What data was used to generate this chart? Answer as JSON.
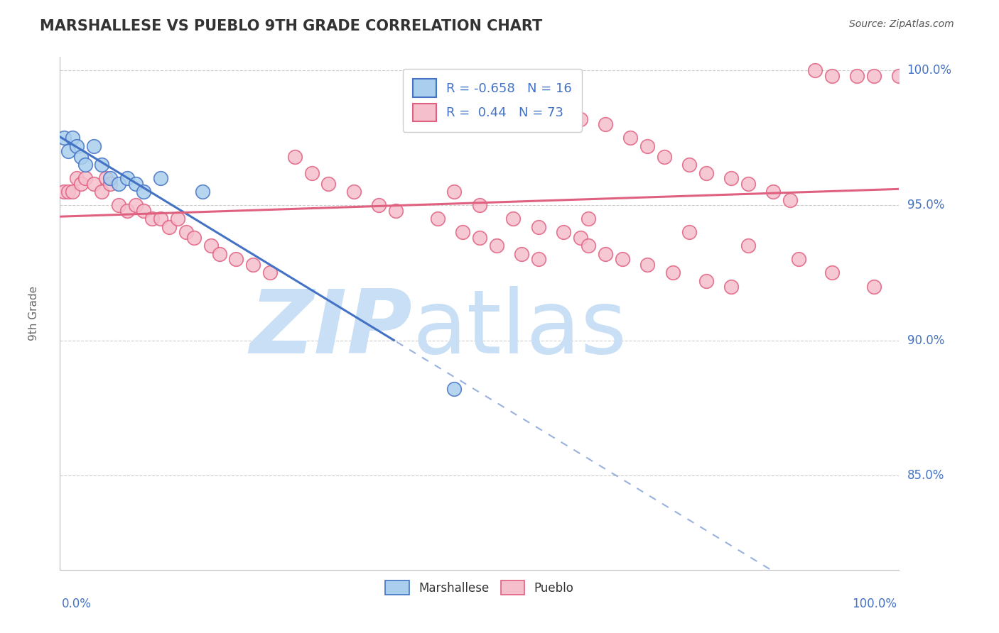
{
  "title": "MARSHALLESE VS PUEBLO 9TH GRADE CORRELATION CHART",
  "source": "Source: ZipAtlas.com",
  "ylabel": "9th Grade",
  "ylim": [
    0.815,
    1.005
  ],
  "xlim": [
    0.0,
    1.0
  ],
  "marshallese_color": "#aacfee",
  "pueblo_color": "#f5bfcc",
  "trend_blue": "#4472c4",
  "trend_pink": "#e06080",
  "R_marshallese": -0.658,
  "N_marshallese": 16,
  "R_pueblo": 0.44,
  "N_pueblo": 73,
  "marshallese_x": [
    0.005,
    0.01,
    0.015,
    0.02,
    0.025,
    0.03,
    0.04,
    0.05,
    0.06,
    0.07,
    0.08,
    0.09,
    0.1,
    0.12,
    0.17,
    0.47
  ],
  "marshallese_y": [
    0.975,
    0.97,
    0.975,
    0.972,
    0.968,
    0.965,
    0.972,
    0.965,
    0.96,
    0.958,
    0.96,
    0.958,
    0.955,
    0.96,
    0.955,
    0.882
  ],
  "pueblo_x": [
    0.005,
    0.01,
    0.015,
    0.02,
    0.025,
    0.03,
    0.04,
    0.05,
    0.055,
    0.06,
    0.07,
    0.08,
    0.09,
    0.1,
    0.11,
    0.12,
    0.13,
    0.14,
    0.15,
    0.16,
    0.18,
    0.19,
    0.21,
    0.23,
    0.25,
    0.28,
    0.3,
    0.32,
    0.35,
    0.38,
    0.4,
    0.45,
    0.48,
    0.5,
    0.52,
    0.55,
    0.57,
    0.6,
    0.62,
    0.65,
    0.68,
    0.7,
    0.72,
    0.75,
    0.77,
    0.8,
    0.82,
    0.85,
    0.87,
    0.9,
    0.92,
    0.95,
    0.97,
    1.0,
    0.63,
    0.75,
    0.82,
    0.88,
    0.92,
    0.97,
    0.47,
    0.5,
    0.54,
    0.57,
    0.6,
    0.62,
    0.63,
    0.65,
    0.67,
    0.7,
    0.73,
    0.77,
    0.8
  ],
  "pueblo_y": [
    0.955,
    0.955,
    0.955,
    0.96,
    0.958,
    0.96,
    0.958,
    0.955,
    0.96,
    0.958,
    0.95,
    0.948,
    0.95,
    0.948,
    0.945,
    0.945,
    0.942,
    0.945,
    0.94,
    0.938,
    0.935,
    0.932,
    0.93,
    0.928,
    0.925,
    0.968,
    0.962,
    0.958,
    0.955,
    0.95,
    0.948,
    0.945,
    0.94,
    0.938,
    0.935,
    0.932,
    0.93,
    0.985,
    0.982,
    0.98,
    0.975,
    0.972,
    0.968,
    0.965,
    0.962,
    0.96,
    0.958,
    0.955,
    0.952,
    1.0,
    0.998,
    0.998,
    0.998,
    0.998,
    0.945,
    0.94,
    0.935,
    0.93,
    0.925,
    0.92,
    0.955,
    0.95,
    0.945,
    0.942,
    0.94,
    0.938,
    0.935,
    0.932,
    0.93,
    0.928,
    0.925,
    0.922,
    0.92
  ],
  "watermark_zip": "ZIP",
  "watermark_atlas": "atlas",
  "watermark_color_zip": "#c8dff5",
  "watermark_color_atlas": "#c8dff5",
  "grid_color": "#cccccc",
  "background_color": "#ffffff",
  "title_color": "#333333",
  "axis_label_color": "#4472c4",
  "legend_R_color": "#4472c4",
  "ytick_vals": [
    0.85,
    0.9,
    0.95,
    1.0
  ],
  "ytick_labels": [
    "85.0%",
    "90.0%",
    "95.0%",
    "100.0%"
  ]
}
